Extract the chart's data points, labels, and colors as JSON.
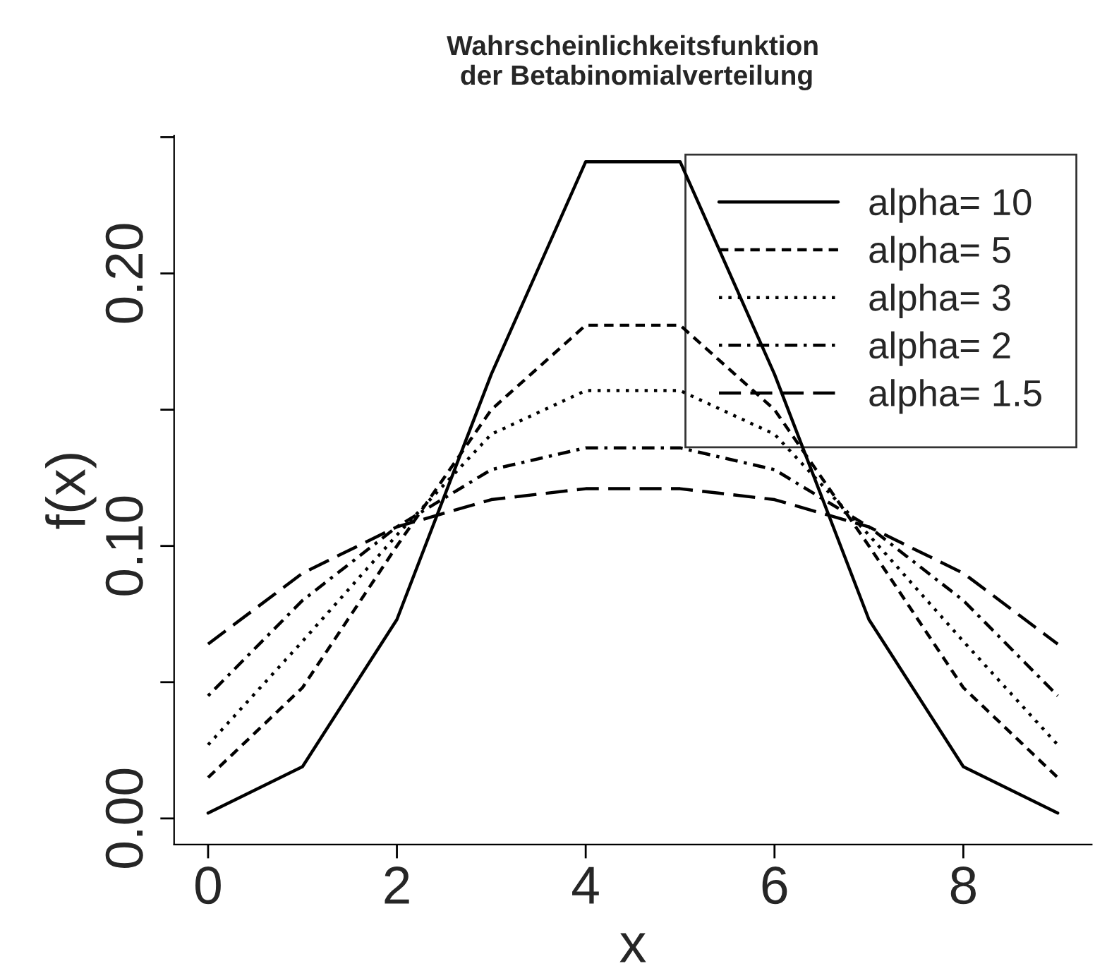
{
  "chart_data": {
    "type": "line",
    "title": "Wahrscheinlichkeitsfunktion\n der Betabinomialverteilung",
    "xlabel": "x",
    "ylabel": "f(x)",
    "x": [
      0,
      1,
      2,
      3,
      4,
      5,
      6,
      7,
      8,
      9
    ],
    "series": [
      {
        "name": "alpha= 10",
        "color": "#000000",
        "line_style": "solid",
        "values": [
          0.002,
          0.019,
          0.073,
          0.163,
          0.241,
          0.241,
          0.163,
          0.073,
          0.019,
          0.002
        ]
      },
      {
        "name": "alpha= 5",
        "color": "#000000",
        "line_style": "dashed",
        "values": [
          0.015,
          0.048,
          0.1,
          0.15,
          0.181,
          0.181,
          0.15,
          0.1,
          0.048,
          0.015
        ]
      },
      {
        "name": "alpha= 3",
        "color": "#000000",
        "line_style": "dotted",
        "values": [
          0.027,
          0.065,
          0.104,
          0.141,
          0.157,
          0.157,
          0.141,
          0.104,
          0.065,
          0.027
        ]
      },
      {
        "name": "alpha= 2",
        "color": "#000000",
        "line_style": "dashdot",
        "values": [
          0.045,
          0.08,
          0.107,
          0.128,
          0.136,
          0.136,
          0.128,
          0.107,
          0.08,
          0.045
        ]
      },
      {
        "name": "alpha= 1.5",
        "color": "#000000",
        "line_style": "longdash",
        "values": [
          0.064,
          0.09,
          0.107,
          0.117,
          0.121,
          0.121,
          0.117,
          0.107,
          0.09,
          0.064
        ]
      }
    ],
    "xlim": [
      -0.36,
      9.36
    ],
    "xticks": [
      0,
      2,
      4,
      6,
      8
    ],
    "ylim": [
      -0.0096,
      0.2506
    ],
    "yticks": [
      {
        "value": 0,
        "label": "0.00"
      },
      {
        "value": 0.05,
        "label": null
      },
      {
        "value": 0.1,
        "label": "0.10"
      },
      {
        "value": 0.15,
        "label": null
      },
      {
        "value": 0.2,
        "label": "0.20"
      },
      {
        "value": 0.25,
        "label": null
      }
    ],
    "grid": false,
    "legend": "top right"
  }
}
